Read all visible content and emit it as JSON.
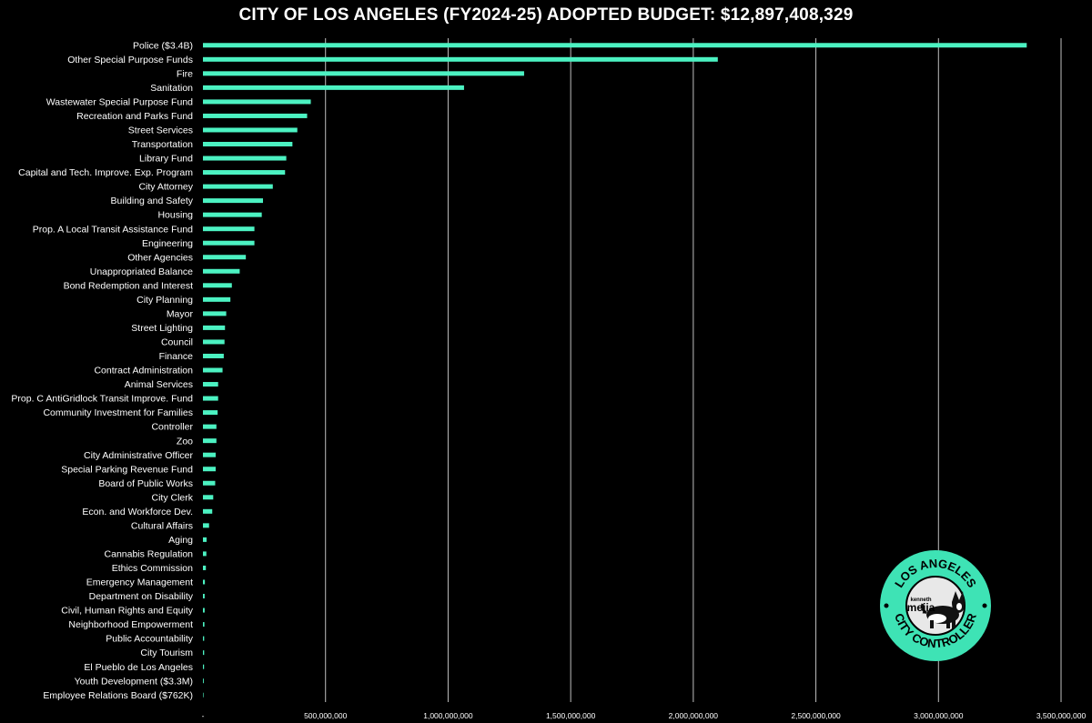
{
  "title": "CITY OF LOS ANGELES (FY2024-25) ADOPTED BUDGET: $12,897,408,329",
  "colors": {
    "background": "#000000",
    "bar": "#4cf2c2",
    "grid": "#bfbfbf",
    "text": "#ffffff",
    "logo_accent": "#3ee3b5"
  },
  "logo": {
    "top_text": "LOS ANGELES",
    "bottom_text": "CITY CONTROLLER",
    "name_small": "kenneth",
    "name_large": "mejia"
  },
  "chart_data": {
    "type": "bar",
    "orientation": "horizontal",
    "title": "CITY OF LOS ANGELES (FY2024-25) ADOPTED BUDGET: $12,897,408,329",
    "xlim": [
      0,
      3500000000
    ],
    "x_ticks": [
      0,
      500000000,
      1000000000,
      1500000000,
      2000000000,
      2500000000,
      3000000000,
      3500000000
    ],
    "x_tick_labels": [
      "-",
      "500,000,000",
      "1,000,000,000",
      "1,500,000,000",
      "2,000,000,000",
      "2,500,000,000",
      "3,000,000,000",
      "3,500,000,000"
    ],
    "grid": true,
    "categories": [
      "Police ($3.4B)",
      "Other Special Purpose Funds",
      "Fire",
      "Sanitation",
      "Wastewater Special Purpose Fund",
      "Recreation and Parks Fund",
      "Street Services",
      "Transportation",
      "Library Fund",
      "Capital and Tech. Improve. Exp. Program",
      "City Attorney",
      "Building and Safety",
      "Housing",
      "Prop. A Local Transit Assistance Fund",
      "Engineering",
      "Other Agencies",
      "Unappropriated Balance",
      "Bond Redemption and Interest",
      "City Planning",
      "Mayor",
      "Street Lighting",
      "Council",
      "Finance",
      "Contract Administration",
      "Animal Services",
      "Prop. C AntiGridlock Transit Improve. Fund",
      "Community Investment for Families",
      "Controller",
      "Zoo",
      "City Administrative Officer",
      "Special Parking Revenue Fund",
      "Board of Public Works",
      "City Clerk",
      "Econ. and Workforce Dev.",
      "Cultural Affairs",
      "Aging",
      "Cannabis Regulation",
      "Ethics Commission",
      "Emergency Management",
      "Department on Disability",
      "Civil, Human Rights and Equity",
      "Neighborhood Empowerment",
      "Public Accountability",
      "City Tourism",
      "El Pueblo de Los Angeles",
      "Youth Development ($3.3M)",
      "Employee Relations Board ($762K)"
    ],
    "values": [
      3360000000,
      2100000000,
      1310000000,
      1065000000,
      440000000,
      425000000,
      385000000,
      365000000,
      340000000,
      335000000,
      285000000,
      245000000,
      240000000,
      210000000,
      210000000,
      175000000,
      150000000,
      118000000,
      112000000,
      95000000,
      90000000,
      88000000,
      85000000,
      80000000,
      62000000,
      62000000,
      60000000,
      55000000,
      55000000,
      52000000,
      52000000,
      50000000,
      42000000,
      38000000,
      25000000,
      15000000,
      14000000,
      12000000,
      8000000,
      7000000,
      7000000,
      6000000,
      5000000,
      5000000,
      4500000,
      3300000,
      762000
    ]
  }
}
